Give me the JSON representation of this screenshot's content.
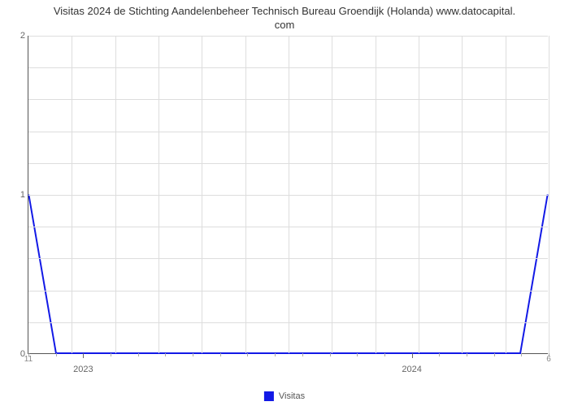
{
  "title_line1": "Visitas 2024 de Stichting Aandelenbeheer Technisch Bureau Groendijk (Holanda) www.datocapital.",
  "title_line2": "com",
  "chart": {
    "type": "line",
    "background_color": "#ffffff",
    "grid_color": "#dddddd",
    "axis_color": "#555555",
    "line_color": "#1219e6",
    "line_width": 2,
    "y": {
      "min": 0,
      "max": 2,
      "ticks": [
        0,
        1,
        2
      ],
      "minor_rows": 10,
      "label_fontsize": 11
    },
    "x": {
      "n_months": 20,
      "start_month": 11,
      "year_labels": [
        {
          "label": "2023",
          "month_index": 2
        },
        {
          "label": "2024",
          "month_index": 14
        }
      ],
      "edge_month_labels": {
        "first": "11",
        "last": "6"
      },
      "minor_cols": 12
    },
    "series": {
      "name": "Visitas",
      "points": [
        {
          "mi": 0,
          "y": 1
        },
        {
          "mi": 1,
          "y": 0
        },
        {
          "mi": 2,
          "y": 0
        },
        {
          "mi": 3,
          "y": 0
        },
        {
          "mi": 4,
          "y": 0
        },
        {
          "mi": 5,
          "y": 0
        },
        {
          "mi": 6,
          "y": 0
        },
        {
          "mi": 7,
          "y": 0
        },
        {
          "mi": 8,
          "y": 0
        },
        {
          "mi": 9,
          "y": 0
        },
        {
          "mi": 10,
          "y": 0
        },
        {
          "mi": 11,
          "y": 0
        },
        {
          "mi": 12,
          "y": 0
        },
        {
          "mi": 13,
          "y": 0
        },
        {
          "mi": 14,
          "y": 0
        },
        {
          "mi": 15,
          "y": 0
        },
        {
          "mi": 16,
          "y": 0
        },
        {
          "mi": 17,
          "y": 0
        },
        {
          "mi": 18,
          "y": 0
        },
        {
          "mi": 19,
          "y": 1
        }
      ]
    }
  },
  "legend_label": "Visitas"
}
